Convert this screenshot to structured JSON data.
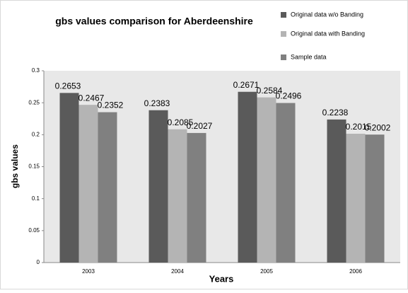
{
  "chart_data": {
    "type": "bar",
    "title": "gbs values comparison for Aberdeenshire",
    "x_label": "Years",
    "y_label": "gbs  values",
    "categories": [
      "2003",
      "2004",
      "2005",
      "2006"
    ],
    "series": [
      {
        "name": "Original data w/o Banding",
        "color": "#5a5a5a",
        "values": [
          0.2653,
          0.2383,
          0.2671,
          0.2238
        ]
      },
      {
        "name": "Original data with Banding",
        "color": "#b4b4b4",
        "values": [
          0.2467,
          0.2085,
          0.2584,
          0.2015
        ]
      },
      {
        "name": "Sample data",
        "color": "#808080",
        "values": [
          0.2352,
          0.2027,
          0.2496,
          0.2002
        ]
      }
    ],
    "ylim": [
      0,
      0.3
    ],
    "yticks": [
      0,
      0.05,
      0.1,
      0.15,
      0.2,
      0.25,
      0.3
    ],
    "legend": "top-right"
  }
}
